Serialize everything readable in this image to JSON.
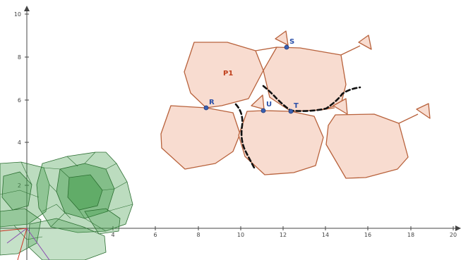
{
  "colors": {
    "polygon_fill": "#f8dcd0",
    "polygon_stroke": "#b8623c",
    "point_fill": "#3a5fb0",
    "point_label": "#2a4fa8",
    "polygon_label": "#c0401c",
    "dashed_path": "#111111",
    "solid_fill": "#3f9a48",
    "solid_stroke": "#2b6e31",
    "axis": "#444444"
  },
  "axes": {
    "x_ticks": [
      "4",
      "6",
      "8",
      "10",
      "12",
      "14",
      "16",
      "18",
      "20"
    ],
    "y_ticks": [
      "2",
      "4",
      "6",
      "8",
      "10"
    ]
  },
  "labels": {
    "polygon": "P1",
    "points": [
      "R",
      "S",
      "T",
      "U"
    ]
  }
}
